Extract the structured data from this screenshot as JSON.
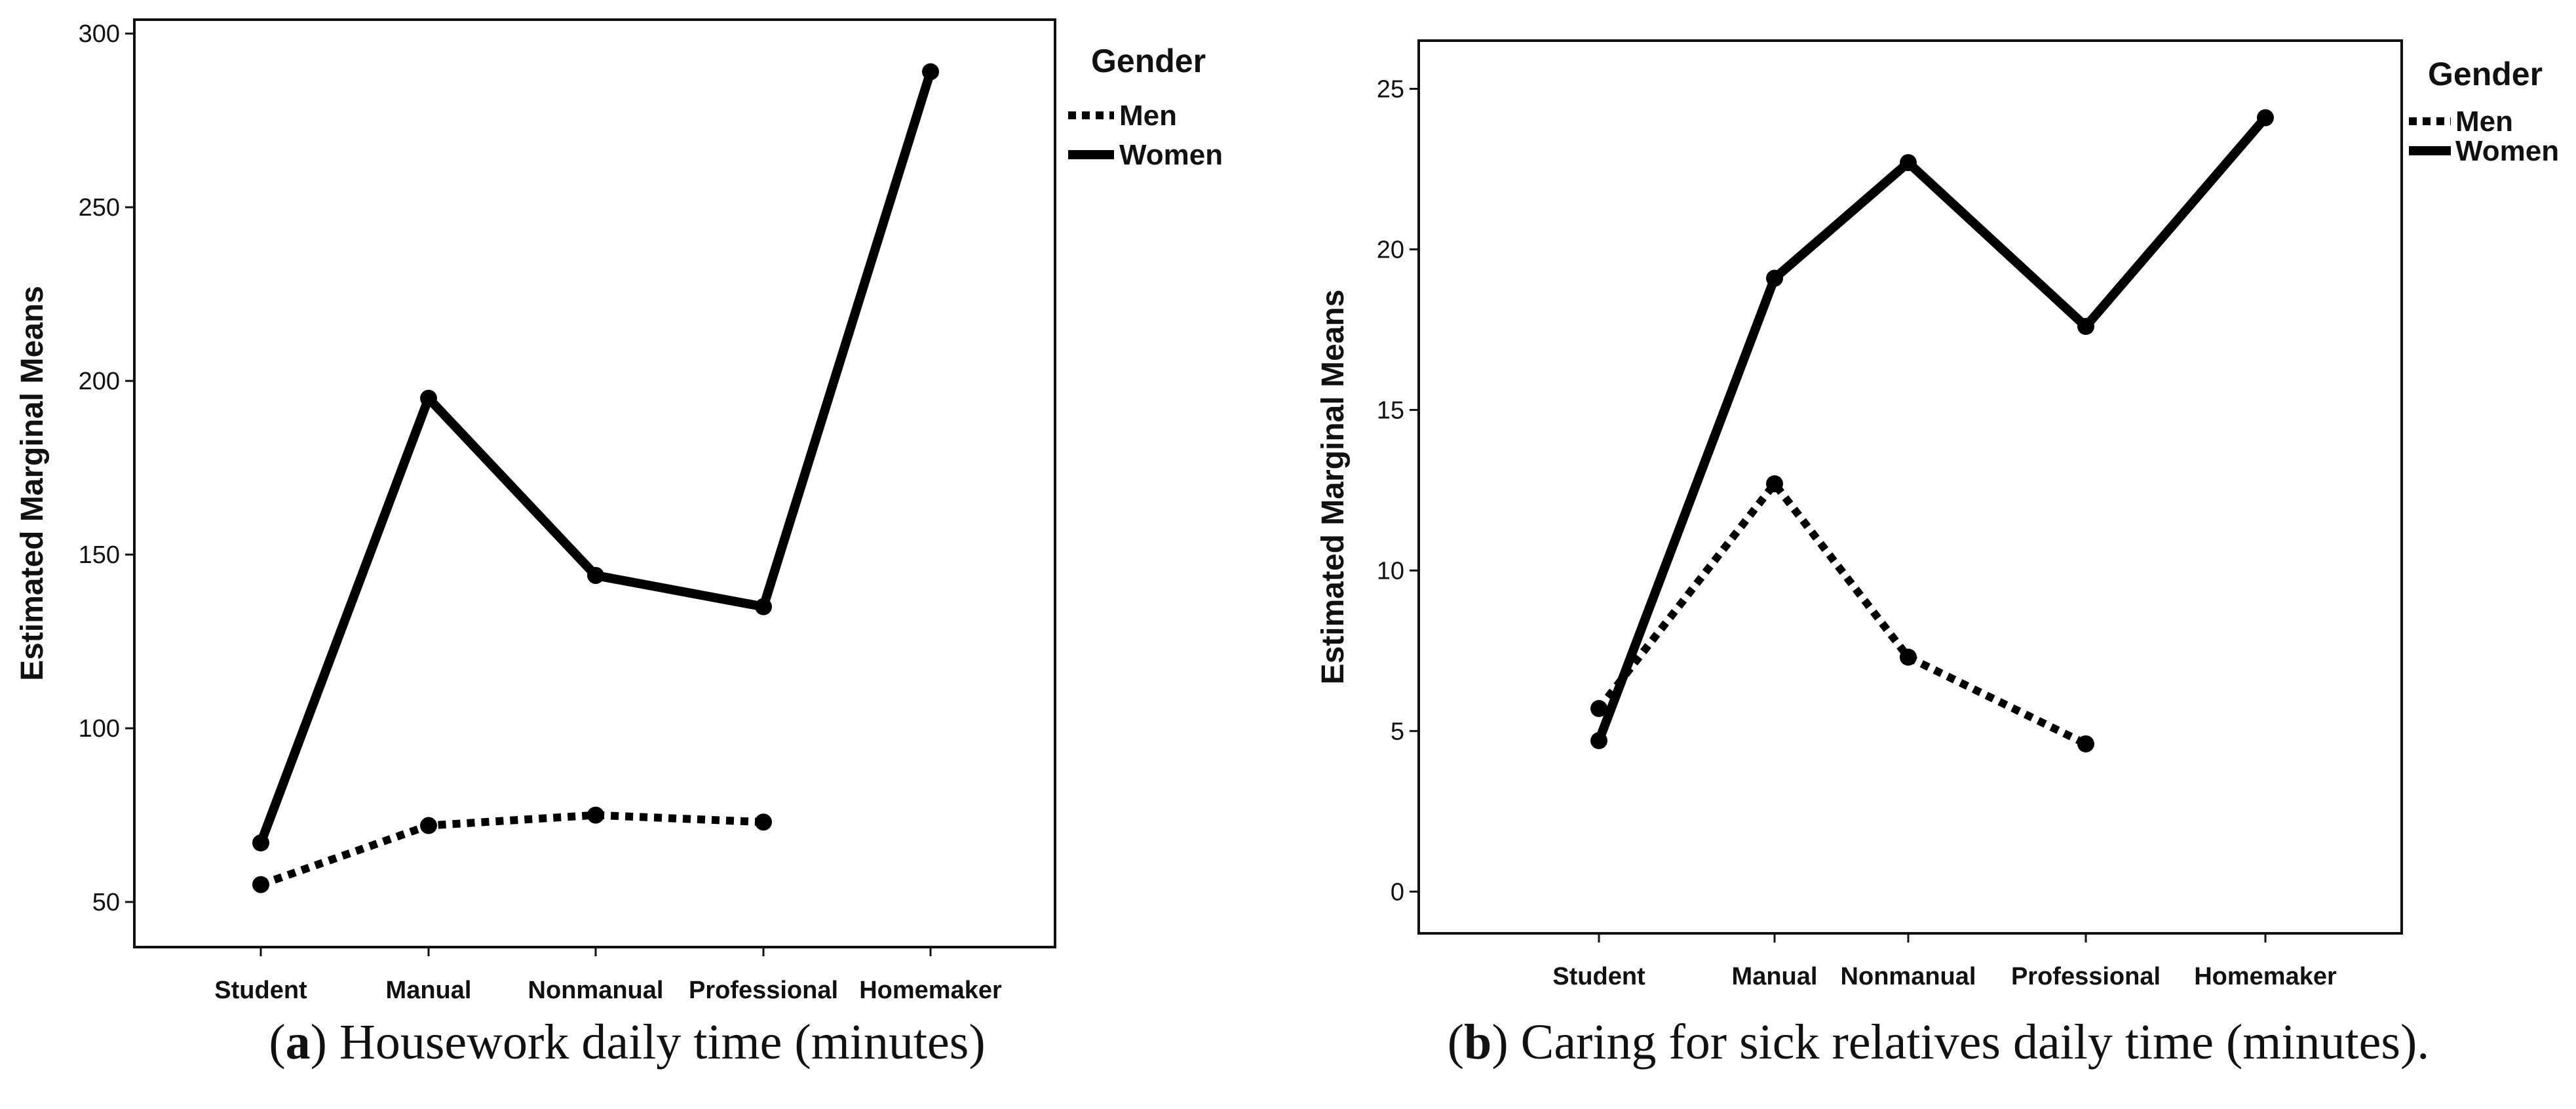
{
  "chart_data": [
    {
      "id": "a",
      "type": "line",
      "caption": {
        "open": "(",
        "letter": "a",
        "close": ")",
        "text": " Housework daily time (minutes)"
      },
      "ylabel": "Estimated Marginal Means",
      "xlabel": "",
      "categories": [
        "Student",
        "Manual",
        "Nonmanual",
        "Professional",
        "Homemaker"
      ],
      "ylim": [
        37,
        304
      ],
      "yticks": [
        50,
        100,
        150,
        200,
        250,
        300
      ],
      "grid": false,
      "legend": {
        "title": "Gender",
        "position": "outside-right",
        "entries": [
          "Men",
          "Women"
        ]
      },
      "series": [
        {
          "name": "Men",
          "style": "dotted",
          "values": [
            55,
            72,
            75,
            73,
            null
          ]
        },
        {
          "name": "Women",
          "style": "solid",
          "values": [
            67,
            195,
            144,
            135,
            289
          ]
        }
      ]
    },
    {
      "id": "b",
      "type": "line",
      "caption": {
        "open": "(",
        "letter": "b",
        "close": ")",
        "text": " Caring for sick relatives daily time (minutes)."
      },
      "ylabel": "Estimated Marginal Means",
      "xlabel": "",
      "categories": [
        "Student",
        "Manual",
        "Nonmanual",
        "Professional",
        "Homemaker"
      ],
      "ylim": [
        -1.3,
        26.5
      ],
      "yticks": [
        0,
        5,
        10,
        15,
        20,
        25
      ],
      "grid": false,
      "legend": {
        "title": "Gender",
        "position": "outside-right",
        "entries": [
          "Men",
          "Women"
        ]
      },
      "series": [
        {
          "name": "Men",
          "style": "dotted",
          "values": [
            5.7,
            12.7,
            7.3,
            4.6,
            null
          ]
        },
        {
          "name": "Women",
          "style": "solid",
          "values": [
            4.7,
            19.1,
            22.7,
            17.6,
            24.1
          ]
        }
      ]
    }
  ]
}
